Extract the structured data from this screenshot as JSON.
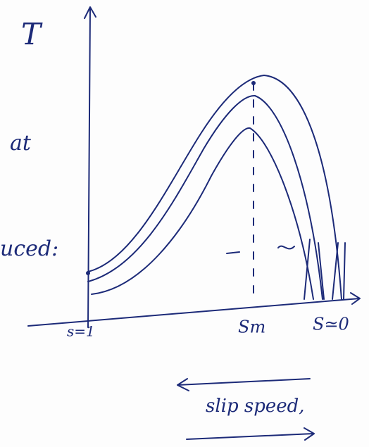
{
  "labels": {
    "axis_y": "T",
    "note_at": "at",
    "note_uced": "uced:",
    "s_one": "s=1",
    "s_max": "Sm",
    "s_zero": "S≃0",
    "slip_speed": "slip speed,"
  }
}
